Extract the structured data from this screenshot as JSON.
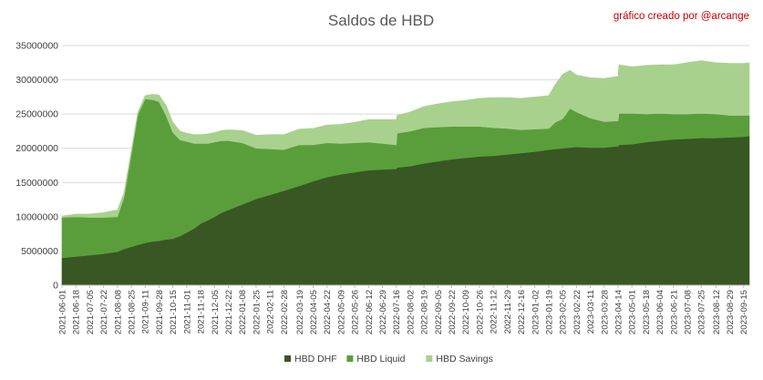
{
  "chart_data": {
    "type": "area",
    "stacked": true,
    "title": "Saldos de HBD",
    "credit": "gráfico creado por @arcange",
    "ylim": [
      0,
      35000000
    ],
    "yticks": [
      0,
      5000000,
      10000000,
      15000000,
      20000000,
      25000000,
      30000000,
      35000000
    ],
    "ytick_labels": [
      "0",
      "5000000",
      "10000000",
      "15000000",
      "20000000",
      "25000000",
      "30000000",
      "35000000"
    ],
    "grid": "horizontal",
    "legend_position": "bottom",
    "xtick_labels": [
      "2021-06-01",
      "2021-06-18",
      "2021-07-05",
      "2021-07-22",
      "2021-08-08",
      "2021-08-25",
      "2021-09-11",
      "2021-09-28",
      "2021-10-15",
      "2021-11-01",
      "2021-11-18",
      "2021-12-05",
      "2021-12-22",
      "2022-01-08",
      "2022-01-25",
      "2022-02-11",
      "2022-02-28",
      "2022-03-19",
      "2022-04-05",
      "2022-04-22",
      "2022-05-09",
      "2022-05-26",
      "2022-06-12",
      "2022-06-29",
      "2022-07-16",
      "2022-08-02",
      "2022-08-19",
      "2022-09-05",
      "2022-09-22",
      "2022-10-09",
      "2022-10-26",
      "2022-11-12",
      "2022-11-29",
      "2022-12-16",
      "2023-01-02",
      "2023-01-19",
      "2023-02-05",
      "2023-02-22",
      "2023-03-11",
      "2023-03-28",
      "2023-04-14",
      "2023-05-01",
      "2023-05-18",
      "2023-06-04",
      "2023-06-21",
      "2023-07-08",
      "2023-07-25",
      "2023-08-12",
      "2023-08-29",
      "2023-09-15"
    ],
    "x": [
      "2021-06-01",
      "2021-06-18",
      "2021-07-05",
      "2021-07-22",
      "2021-08-08",
      "2021-08-16",
      "2021-08-25",
      "2021-09-02",
      "2021-09-11",
      "2021-09-20",
      "2021-09-28",
      "2021-10-07",
      "2021-10-15",
      "2021-10-24",
      "2021-11-01",
      "2021-11-10",
      "2021-11-18",
      "2021-11-27",
      "2021-12-05",
      "2021-12-14",
      "2021-12-22",
      "2022-01-08",
      "2022-01-25",
      "2022-02-11",
      "2022-02-28",
      "2022-03-19",
      "2022-04-05",
      "2022-04-22",
      "2022-05-09",
      "2022-05-26",
      "2022-06-12",
      "2022-06-29",
      "2022-07-16",
      "2022-07-17",
      "2022-08-02",
      "2022-08-19",
      "2022-09-05",
      "2022-09-22",
      "2022-10-09",
      "2022-10-26",
      "2022-11-12",
      "2022-11-29",
      "2022-12-16",
      "2023-01-02",
      "2023-01-19",
      "2023-01-27",
      "2023-02-05",
      "2023-02-14",
      "2023-02-22",
      "2023-03-11",
      "2023-03-28",
      "2023-04-14",
      "2023-04-15",
      "2023-05-01",
      "2023-05-18",
      "2023-06-04",
      "2023-06-21",
      "2023-07-08",
      "2023-07-25",
      "2023-08-12",
      "2023-08-29",
      "2023-09-15",
      "2023-09-22"
    ],
    "series": [
      {
        "name": "HBD DHF",
        "color": "#385723",
        "values": [
          4000000,
          4200000,
          4400000,
          4600000,
          4900000,
          5300000,
          5600000,
          5900000,
          6200000,
          6400000,
          6500000,
          6700000,
          6800000,
          7200000,
          7700000,
          8300000,
          9000000,
          9500000,
          10000000,
          10600000,
          11000000,
          11800000,
          12600000,
          13200000,
          13800000,
          14500000,
          15200000,
          15800000,
          16200000,
          16500000,
          16800000,
          16900000,
          17000000,
          17200000,
          17400000,
          17800000,
          18100000,
          18400000,
          18600000,
          18800000,
          18900000,
          19100000,
          19300000,
          19500000,
          19800000,
          19900000,
          20000000,
          20100000,
          20200000,
          20100000,
          20100000,
          20300000,
          20500000,
          20600000,
          20900000,
          21100000,
          21300000,
          21400000,
          21500000,
          21500000,
          21600000,
          21700000,
          21800000
        ]
      },
      {
        "name": "HBD Liquid",
        "color": "#5a9e3b",
        "values": [
          5900000,
          5800000,
          5500000,
          5300000,
          5100000,
          7500000,
          13500000,
          19000000,
          21000000,
          20700000,
          20300000,
          18000000,
          15500000,
          14000000,
          13300000,
          12400000,
          11700000,
          11200000,
          10900000,
          10500000,
          10100000,
          9000000,
          7400000,
          6700000,
          6000000,
          6000000,
          5300000,
          5000000,
          4500000,
          4300000,
          4100000,
          3800000,
          3500000,
          5000000,
          5100000,
          5200000,
          5000000,
          4800000,
          4600000,
          4400000,
          4100000,
          3800000,
          3400000,
          3300000,
          3100000,
          3900000,
          4300000,
          5700000,
          5100000,
          4300000,
          3800000,
          3700000,
          4600000,
          4500000,
          4100000,
          4000000,
          3700000,
          3600000,
          3600000,
          3500000,
          3200000,
          3100000,
          3000000
        ]
      },
      {
        "name": "HBD Savings",
        "color": "#a9d18e",
        "values": [
          200000,
          400000,
          500000,
          700000,
          1000000,
          700000,
          500000,
          400000,
          500000,
          800000,
          1000000,
          1500000,
          1500000,
          1300000,
          1200000,
          1300000,
          1300000,
          1400000,
          1400000,
          1500000,
          1600000,
          1800000,
          1900000,
          2100000,
          2200000,
          2300000,
          2400000,
          2600000,
          2800000,
          3000000,
          3300000,
          3500000,
          3700000,
          2600000,
          2800000,
          3100000,
          3400000,
          3600000,
          3800000,
          4100000,
          4400000,
          4500000,
          4600000,
          4700000,
          4800000,
          5500000,
          6500000,
          5600000,
          5400000,
          5900000,
          6300000,
          6500000,
          7100000,
          6800000,
          7100000,
          7100000,
          7200000,
          7500000,
          7700000,
          7500000,
          7600000,
          7600000,
          7700000
        ]
      }
    ]
  }
}
